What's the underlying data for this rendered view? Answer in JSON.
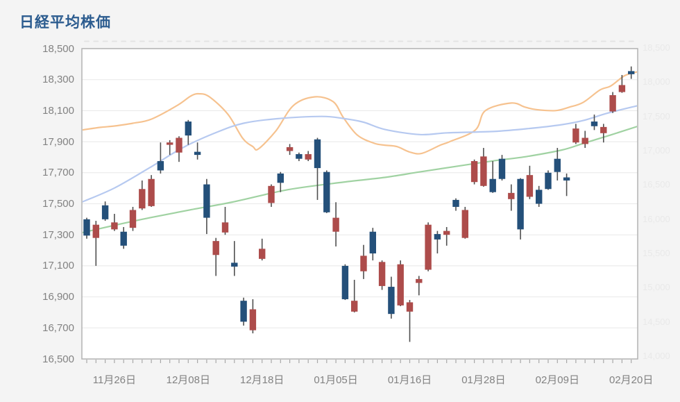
{
  "title": "日経平均株価",
  "colors": {
    "bg": "#f4f4f4",
    "plot_bg": "#ffffff",
    "grid": "#e8e8e8",
    "border": "#b2b2b2",
    "title": "#2c5c8f",
    "axis_text": "#828282",
    "ghost_text": "#e9e9e9",
    "ghost_tick": "#e4e4e4",
    "session_tick": "#a8a8a8",
    "up": "#ad4c4b",
    "down": "#24507a",
    "wick": "#4f4f4f",
    "ma_short": "#f6c28f",
    "ma_mid": "#b6c9f0",
    "ma_long": "#a0d2a2"
  },
  "y_axis": {
    "min": 16500,
    "max": 18500,
    "step": 200,
    "labels": [
      "18,500",
      "18,300",
      "18,100",
      "17,900",
      "17,700",
      "17,500",
      "17,300",
      "17,100",
      "16,900",
      "16,700",
      "16,500"
    ]
  },
  "x_axis": {
    "tick_sessions": [
      3,
      11,
      19,
      27,
      35,
      43,
      51,
      59
    ],
    "labels": [
      "11月26日",
      "12月08日",
      "12月18日",
      "01月05日",
      "01月16日",
      "01月28日",
      "02月09日",
      "02月20日"
    ]
  },
  "ghost_axis": {
    "min": 14000,
    "max": 18500,
    "step": 500,
    "labels": [
      "18,500",
      "18,000",
      "17,500",
      "17,000",
      "16,500",
      "16,000",
      "15,500",
      "15,000",
      "14,500",
      "14,000"
    ]
  },
  "chart_data": {
    "type": "candlestick",
    "title": "日経平均株価",
    "ylim": [
      16500,
      18500
    ],
    "sessions": 60,
    "grid": true,
    "ohlc": [
      [
        17400,
        17410,
        17275,
        17295
      ],
      [
        17280,
        17390,
        17100,
        17365
      ],
      [
        17490,
        17515,
        17390,
        17400
      ],
      [
        17335,
        17435,
        17325,
        17380
      ],
      [
        17320,
        17350,
        17210,
        17230
      ],
      [
        17345,
        17480,
        17325,
        17460
      ],
      [
        17470,
        17650,
        17460,
        17595
      ],
      [
        17485,
        17685,
        17480,
        17660
      ],
      [
        17775,
        17895,
        17695,
        17715
      ],
      [
        17880,
        17910,
        17815,
        17895
      ],
      [
        17830,
        17935,
        17770,
        17925
      ],
      [
        18030,
        18040,
        17880,
        17940
      ],
      [
        17835,
        17895,
        17785,
        17815
      ],
      [
        17625,
        17660,
        17305,
        17410
      ],
      [
        17170,
        17280,
        17035,
        17260
      ],
      [
        17315,
        17480,
        17300,
        17380
      ],
      [
        17120,
        17260,
        17035,
        17095
      ],
      [
        16875,
        16895,
        16715,
        16740
      ],
      [
        16685,
        16885,
        16665,
        16820
      ],
      [
        17145,
        17275,
        17135,
        17210
      ],
      [
        17505,
        17625,
        17480,
        17615
      ],
      [
        17695,
        17705,
        17575,
        17635
      ],
      [
        17840,
        17885,
        17815,
        17865
      ],
      [
        17820,
        17830,
        17775,
        17790
      ],
      [
        17785,
        17840,
        17775,
        17820
      ],
      [
        17915,
        17925,
        17525,
        17730
      ],
      [
        17705,
        17715,
        17440,
        17445
      ],
      [
        17320,
        17510,
        17225,
        17410
      ],
      [
        17100,
        17110,
        16880,
        16885
      ],
      [
        16805,
        17010,
        16800,
        16875
      ],
      [
        17065,
        17235,
        17015,
        17165
      ],
      [
        17320,
        17345,
        17135,
        17180
      ],
      [
        16970,
        17135,
        16945,
        17125
      ],
      [
        16965,
        17030,
        16760,
        16790
      ],
      [
        16845,
        17135,
        16840,
        17110
      ],
      [
        16805,
        16880,
        16610,
        16865
      ],
      [
        16990,
        17035,
        16910,
        17015
      ],
      [
        17075,
        17380,
        17065,
        17365
      ],
      [
        17305,
        17325,
        17180,
        17270
      ],
      [
        17300,
        17350,
        17230,
        17325
      ],
      [
        17525,
        17535,
        17455,
        17480
      ],
      [
        17280,
        17480,
        17275,
        17460
      ],
      [
        17640,
        17785,
        17625,
        17775
      ],
      [
        17615,
        17860,
        17610,
        17805
      ],
      [
        17660,
        17775,
        17570,
        17575
      ],
      [
        17790,
        17815,
        17650,
        17660
      ],
      [
        17530,
        17625,
        17455,
        17570
      ],
      [
        17660,
        17665,
        17270,
        17335
      ],
      [
        17545,
        17745,
        17530,
        17685
      ],
      [
        17590,
        17615,
        17480,
        17500
      ],
      [
        17700,
        17715,
        17590,
        17595
      ],
      [
        17790,
        17860,
        17650,
        17705
      ],
      [
        17670,
        17695,
        17550,
        17650
      ],
      [
        17895,
        18015,
        17885,
        17985
      ],
      [
        17885,
        17970,
        17860,
        17925
      ],
      [
        18030,
        18075,
        17975,
        18000
      ],
      [
        17955,
        18015,
        17895,
        17995
      ],
      [
        18095,
        18220,
        18085,
        18200
      ],
      [
        18220,
        18330,
        18215,
        18265
      ],
      [
        18355,
        18385,
        18305,
        18335
      ]
    ],
    "ma_lines": [
      {
        "name": "ma-short",
        "color_key": "ma_short",
        "axis_range": [
          14000,
          18500
        ],
        "points": [
          [
            -0.6,
            17290
          ],
          [
            1.5,
            17330
          ],
          [
            3,
            17350
          ],
          [
            5,
            17390
          ],
          [
            7,
            17450
          ],
          [
            9.8,
            17650
          ],
          [
            11.3,
            17790
          ],
          [
            12.2,
            17820
          ],
          [
            13.3,
            17775
          ],
          [
            15.3,
            17520
          ],
          [
            16.9,
            17170
          ],
          [
            18,
            17050
          ],
          [
            18.6,
            17015
          ],
          [
            20.5,
            17280
          ],
          [
            22.4,
            17650
          ],
          [
            24.7,
            17775
          ],
          [
            26.7,
            17705
          ],
          [
            27.8,
            17475
          ],
          [
            29.3,
            17220
          ],
          [
            31.1,
            17100
          ],
          [
            32.3,
            17070
          ],
          [
            33.6,
            17050
          ],
          [
            35,
            16970
          ],
          [
            36.3,
            16950
          ],
          [
            38.3,
            17070
          ],
          [
            39.3,
            17120
          ],
          [
            42.1,
            17290
          ],
          [
            43.2,
            17575
          ],
          [
            46,
            17685
          ],
          [
            47.5,
            17625
          ],
          [
            48.7,
            17590
          ],
          [
            50.8,
            17575
          ],
          [
            52.3,
            17625
          ],
          [
            53.8,
            17695
          ],
          [
            55.6,
            17875
          ],
          [
            56.8,
            17935
          ],
          [
            58.3,
            18085
          ],
          [
            59.8,
            18145
          ]
        ]
      },
      {
        "name": "ma-mid",
        "color_key": "ma_mid",
        "axis_range": [
          14000,
          18500
        ],
        "points": [
          [
            -0.6,
            16235
          ],
          [
            3,
            16445
          ],
          [
            6.8,
            16740
          ],
          [
            10.5,
            17040
          ],
          [
            14.3,
            17270
          ],
          [
            17,
            17390
          ],
          [
            20.5,
            17455
          ],
          [
            25.4,
            17490
          ],
          [
            27.8,
            17460
          ],
          [
            30,
            17405
          ],
          [
            32.3,
            17300
          ],
          [
            36.1,
            17225
          ],
          [
            39.1,
            17250
          ],
          [
            44,
            17270
          ],
          [
            47.7,
            17310
          ],
          [
            51.5,
            17370
          ],
          [
            53.8,
            17430
          ],
          [
            56.5,
            17540
          ],
          [
            59.8,
            17650
          ]
        ]
      },
      {
        "name": "ma-long",
        "color_key": "ma_long",
        "axis_range": [
          14000,
          18500
        ],
        "points": [
          [
            -0.6,
            15790
          ],
          [
            3,
            15900
          ],
          [
            6.8,
            16010
          ],
          [
            11,
            16120
          ],
          [
            15.8,
            16240
          ],
          [
            21.8,
            16420
          ],
          [
            27.8,
            16530
          ],
          [
            32.3,
            16600
          ],
          [
            36.1,
            16680
          ],
          [
            40,
            16760
          ],
          [
            44,
            16840
          ],
          [
            47.7,
            16905
          ],
          [
            51.5,
            17000
          ],
          [
            53.8,
            17095
          ],
          [
            56.8,
            17220
          ],
          [
            59.8,
            17350
          ]
        ]
      }
    ]
  }
}
